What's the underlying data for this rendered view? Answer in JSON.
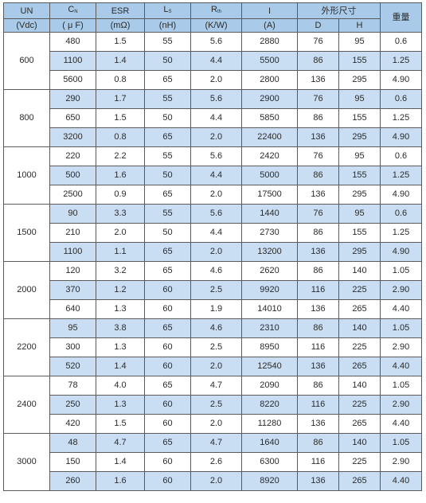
{
  "headers": {
    "un": "UN",
    "un_unit": "(Vdc)",
    "cn_main": "C",
    "cn_sub": "N",
    "cn_unit": "( μ F)",
    "esr": "ESR",
    "esr_unit": "(mΩ)",
    "ls_main": "L",
    "ls_sub": "S",
    "ls_unit": "(nH)",
    "rth_main": "R",
    "rth_sub": "th",
    "rth_unit": "(K/W)",
    "i": "I",
    "i_unit": "(A)",
    "size": "外形尺寸",
    "d": "D",
    "h": "H",
    "weight": "重量"
  },
  "groups": [
    {
      "un": "600",
      "rows": [
        {
          "cn": "480",
          "esr": "1.5",
          "ls": "55",
          "rth": "5.6",
          "i": "2880",
          "d": "76",
          "h": "95",
          "w": "0.6"
        },
        {
          "cn": "1100",
          "esr": "1.4",
          "ls": "50",
          "rth": "4.4",
          "i": "5500",
          "d": "86",
          "h": "155",
          "w": "1.25"
        },
        {
          "cn": "5600",
          "esr": "0.8",
          "ls": "65",
          "rth": "2.0",
          "i": "2800",
          "d": "136",
          "h": "295",
          "w": "4.90"
        }
      ]
    },
    {
      "un": "800",
      "rows": [
        {
          "cn": "290",
          "esr": "1.7",
          "ls": "55",
          "rth": "5.6",
          "i": "2900",
          "d": "76",
          "h": "95",
          "w": "0.6"
        },
        {
          "cn": "650",
          "esr": "1.5",
          "ls": "50",
          "rth": "4.4",
          "i": "5850",
          "d": "86",
          "h": "155",
          "w": "1.25"
        },
        {
          "cn": "3200",
          "esr": "0.8",
          "ls": "65",
          "rth": "2.0",
          "i": "22400",
          "d": "136",
          "h": "295",
          "w": "4.90"
        }
      ]
    },
    {
      "un": "1000",
      "rows": [
        {
          "cn": "220",
          "esr": "2.2",
          "ls": "55",
          "rth": "5.6",
          "i": "2420",
          "d": "76",
          "h": "95",
          "w": "0.6"
        },
        {
          "cn": "500",
          "esr": "1.6",
          "ls": "50",
          "rth": "4.4",
          "i": "5000",
          "d": "86",
          "h": "155",
          "w": "1.25"
        },
        {
          "cn": "2500",
          "esr": "0.9",
          "ls": "65",
          "rth": "2.0",
          "i": "17500",
          "d": "136",
          "h": "295",
          "w": "4.90"
        }
      ]
    },
    {
      "un": "1500",
      "rows": [
        {
          "cn": "90",
          "esr": "3.3",
          "ls": "55",
          "rth": "5.6",
          "i": "1440",
          "d": "76",
          "h": "95",
          "w": "0.6"
        },
        {
          "cn": "210",
          "esr": "2.0",
          "ls": "50",
          "rth": "4.4",
          "i": "2730",
          "d": "86",
          "h": "155",
          "w": "1.25"
        },
        {
          "cn": "1100",
          "esr": "1.1",
          "ls": "65",
          "rth": "2.0",
          "i": "13200",
          "d": "136",
          "h": "295",
          "w": "4.90"
        }
      ]
    },
    {
      "un": "2000",
      "rows": [
        {
          "cn": "120",
          "esr": "3.2",
          "ls": "65",
          "rth": "4.6",
          "i": "2620",
          "d": "86",
          "h": "140",
          "w": "1.05"
        },
        {
          "cn": "370",
          "esr": "1.2",
          "ls": "60",
          "rth": "2.5",
          "i": "9920",
          "d": "116",
          "h": "225",
          "w": "2.90"
        },
        {
          "cn": "640",
          "esr": "1.3",
          "ls": "60",
          "rth": "1.9",
          "i": "14010",
          "d": "136",
          "h": "265",
          "w": "4.40"
        }
      ]
    },
    {
      "un": "2200",
      "rows": [
        {
          "cn": "95",
          "esr": "3.8",
          "ls": "65",
          "rth": "4.6",
          "i": "2310",
          "d": "86",
          "h": "140",
          "w": "1.05"
        },
        {
          "cn": "300",
          "esr": "1.3",
          "ls": "60",
          "rth": "2.5",
          "i": "8950",
          "d": "116",
          "h": "225",
          "w": "2.90"
        },
        {
          "cn": "520",
          "esr": "1.4",
          "ls": "60",
          "rth": "2.0",
          "i": "12540",
          "d": "136",
          "h": "265",
          "w": "4.40"
        }
      ]
    },
    {
      "un": "2400",
      "rows": [
        {
          "cn": "78",
          "esr": "4.0",
          "ls": "65",
          "rth": "4.7",
          "i": "2090",
          "d": "86",
          "h": "140",
          "w": "1.05"
        },
        {
          "cn": "250",
          "esr": "1.3",
          "ls": "60",
          "rth": "2.5",
          "i": "8220",
          "d": "116",
          "h": "225",
          "w": "2.90"
        },
        {
          "cn": "420",
          "esr": "1.5",
          "ls": "60",
          "rth": "2.0",
          "i": "11280",
          "d": "136",
          "h": "265",
          "w": "4.40"
        }
      ]
    },
    {
      "un": "3000",
      "rows": [
        {
          "cn": "48",
          "esr": "4.7",
          "ls": "65",
          "rth": "4.7",
          "i": "1640",
          "d": "86",
          "h": "140",
          "w": "1.05"
        },
        {
          "cn": "150",
          "esr": "1.4",
          "ls": "60",
          "rth": "2.6",
          "i": "6300",
          "d": "116",
          "h": "225",
          "w": "2.90"
        },
        {
          "cn": "260",
          "esr": "1.6",
          "ls": "60",
          "rth": "2.0",
          "i": "8920",
          "d": "136",
          "h": "265",
          "w": "4.40"
        }
      ]
    }
  ],
  "colors": {
    "header_bg": "#a9cbe9",
    "row_shade": "#c9def2",
    "border": "#5a5a5a"
  }
}
